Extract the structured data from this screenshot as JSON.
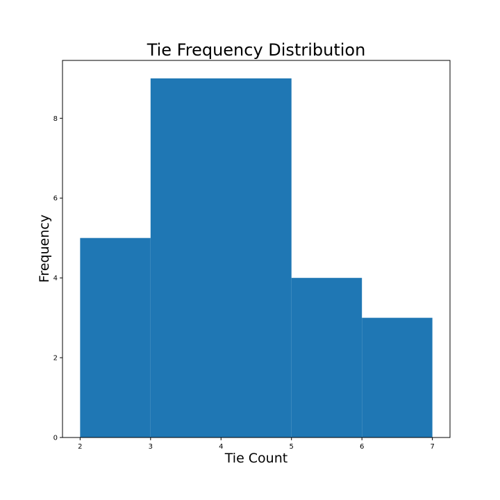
{
  "chart_data": {
    "type": "bar",
    "subtype": "histogram",
    "title": "Tie Frequency Distribution",
    "xlabel": "Tie Count",
    "ylabel": "Frequency",
    "bins": [
      {
        "start": 2,
        "end": 3,
        "count": 5
      },
      {
        "start": 3,
        "end": 5,
        "count": 9
      },
      {
        "start": 5,
        "end": 6,
        "count": 4
      },
      {
        "start": 6,
        "end": 7,
        "count": 3
      }
    ],
    "x_ticks": [
      2,
      3,
      4,
      5,
      6,
      7
    ],
    "y_ticks": [
      0,
      2,
      4,
      6,
      8
    ],
    "xlim": [
      1.75,
      7.25
    ],
    "ylim": [
      0,
      9.45
    ],
    "grid": false,
    "legend": "none",
    "bar_color": "#1f77b4"
  }
}
